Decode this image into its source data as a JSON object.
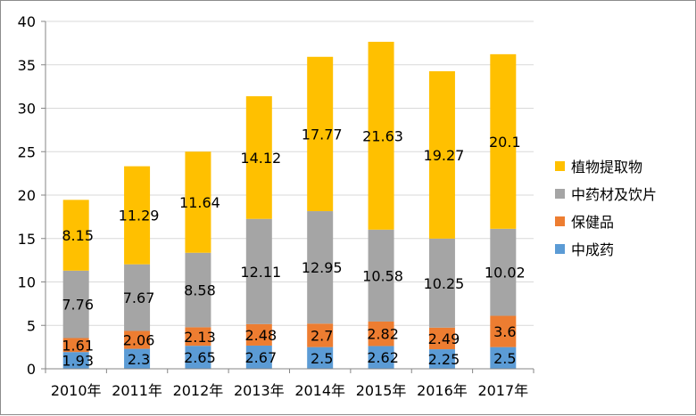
{
  "chart_data": {
    "type": "bar",
    "stacked": true,
    "categories": [
      "2010年",
      "2011年",
      "2012年",
      "2013年",
      "2014年",
      "2015年",
      "2016年",
      "2017年"
    ],
    "series": [
      {
        "name": "中成药",
        "color": "#5b9bd5",
        "values": [
          1.93,
          2.3,
          2.65,
          2.67,
          2.5,
          2.62,
          2.25,
          2.5
        ]
      },
      {
        "name": "保健品",
        "color": "#ed7d31",
        "values": [
          1.61,
          2.06,
          2.13,
          2.48,
          2.7,
          2.82,
          2.49,
          3.6
        ]
      },
      {
        "name": "中药材及饮片",
        "color": "#a5a5a5",
        "values": [
          7.76,
          7.67,
          8.58,
          12.11,
          12.95,
          10.58,
          10.25,
          10.02
        ]
      },
      {
        "name": "植物提取物",
        "color": "#ffc000",
        "values": [
          8.15,
          11.29,
          11.64,
          14.12,
          17.77,
          21.63,
          19.27,
          20.1
        ]
      }
    ],
    "legend_order": [
      "植物提取物",
      "中药材及饮片",
      "保健品",
      "中成药"
    ],
    "ylim": [
      0,
      40
    ],
    "yticks": [
      0,
      5,
      10,
      15,
      20,
      25,
      30,
      35,
      40
    ],
    "grid": true,
    "legend_position": "right",
    "title": "",
    "xlabel": "",
    "ylabel": ""
  }
}
